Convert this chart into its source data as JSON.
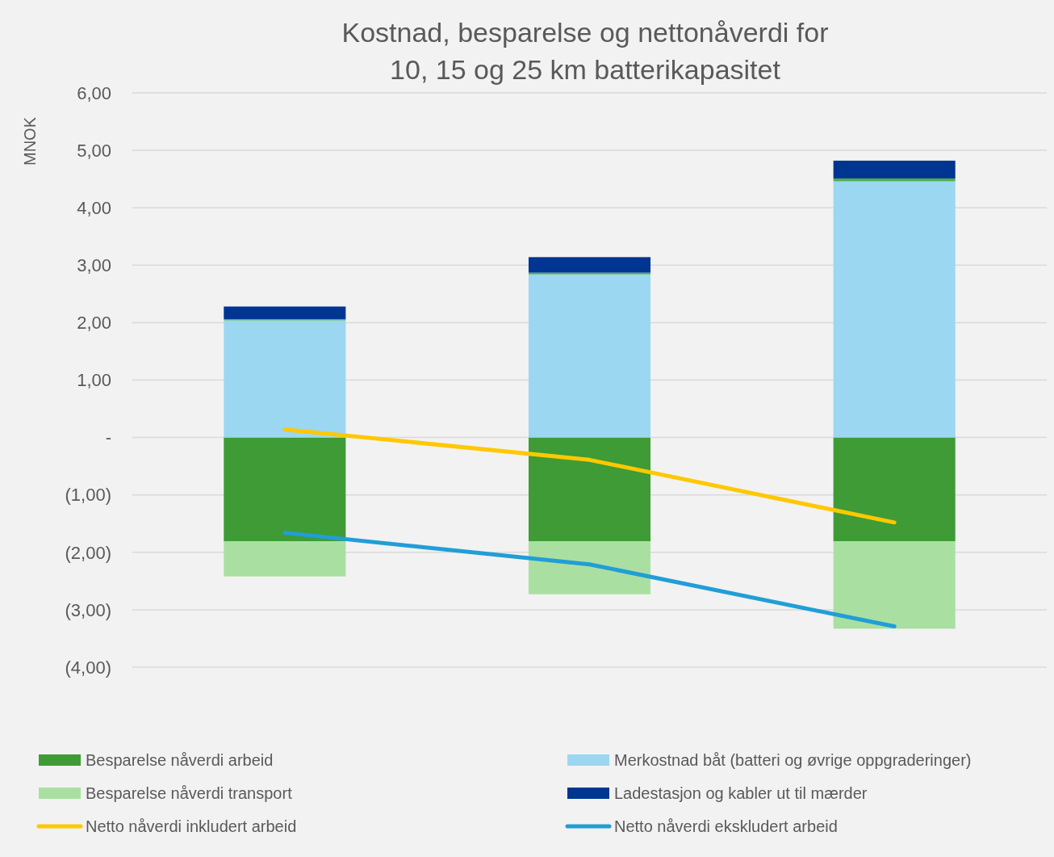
{
  "chart_data": {
    "type": "bar",
    "stacked": true,
    "title": "Kostnad, besparelse og nettonåverdi for 10, 15 og 25 km batterikapasitet",
    "ylabel": "MNOK",
    "categories": [
      null,
      null,
      null
    ],
    "ylim": [
      -4,
      6
    ],
    "yticks": [
      {
        "value": 6,
        "label": "6,00"
      },
      {
        "value": 5,
        "label": "5,00"
      },
      {
        "value": 4,
        "label": "4,00"
      },
      {
        "value": 3,
        "label": "3,00"
      },
      {
        "value": 2,
        "label": "2,00"
      },
      {
        "value": 1,
        "label": "1,00"
      },
      {
        "value": 0,
        "label": "-"
      },
      {
        "value": -1,
        "label": "(1,00)"
      },
      {
        "value": -2,
        "label": "(2,00)"
      },
      {
        "value": -3,
        "label": "(3,00)"
      },
      {
        "value": -4,
        "label": "(4,00)"
      }
    ],
    "grid": "y",
    "legend": "bottom",
    "series": [
      {
        "name": "Besparelse nåverdi arbeid",
        "color": "#3f9b35",
        "values": [
          -1.81,
          -1.81,
          -1.81
        ]
      },
      {
        "name": "Merkostnad båt (batteri og øvrige oppgraderinger)",
        "color": "#9bd7f0",
        "values": [
          2.04,
          2.84,
          4.46
        ]
      },
      {
        "name": "Besparelse nåverdi transport",
        "color": "#aadfa2",
        "values": [
          -0.61,
          -0.92,
          -1.52
        ]
      },
      {
        "color": "#4caf50",
        "values": [
          0.02,
          0.03,
          0.05
        ]
      },
      {
        "name": "Ladestasjon og kabler ut til mærder",
        "color": "#003591",
        "values": [
          0.22,
          0.27,
          0.31
        ]
      },
      {
        "name": "Netto nåverdi inkludert arbeid",
        "type": "line",
        "color": "#ffc800",
        "values": [
          0.14,
          -0.39,
          -1.48
        ]
      },
      {
        "name": "Netto nåverdi ekskludert arbeid",
        "type": "line",
        "color": "#219ed6",
        "values": [
          -1.66,
          -2.21,
          -3.29
        ]
      }
    ]
  }
}
